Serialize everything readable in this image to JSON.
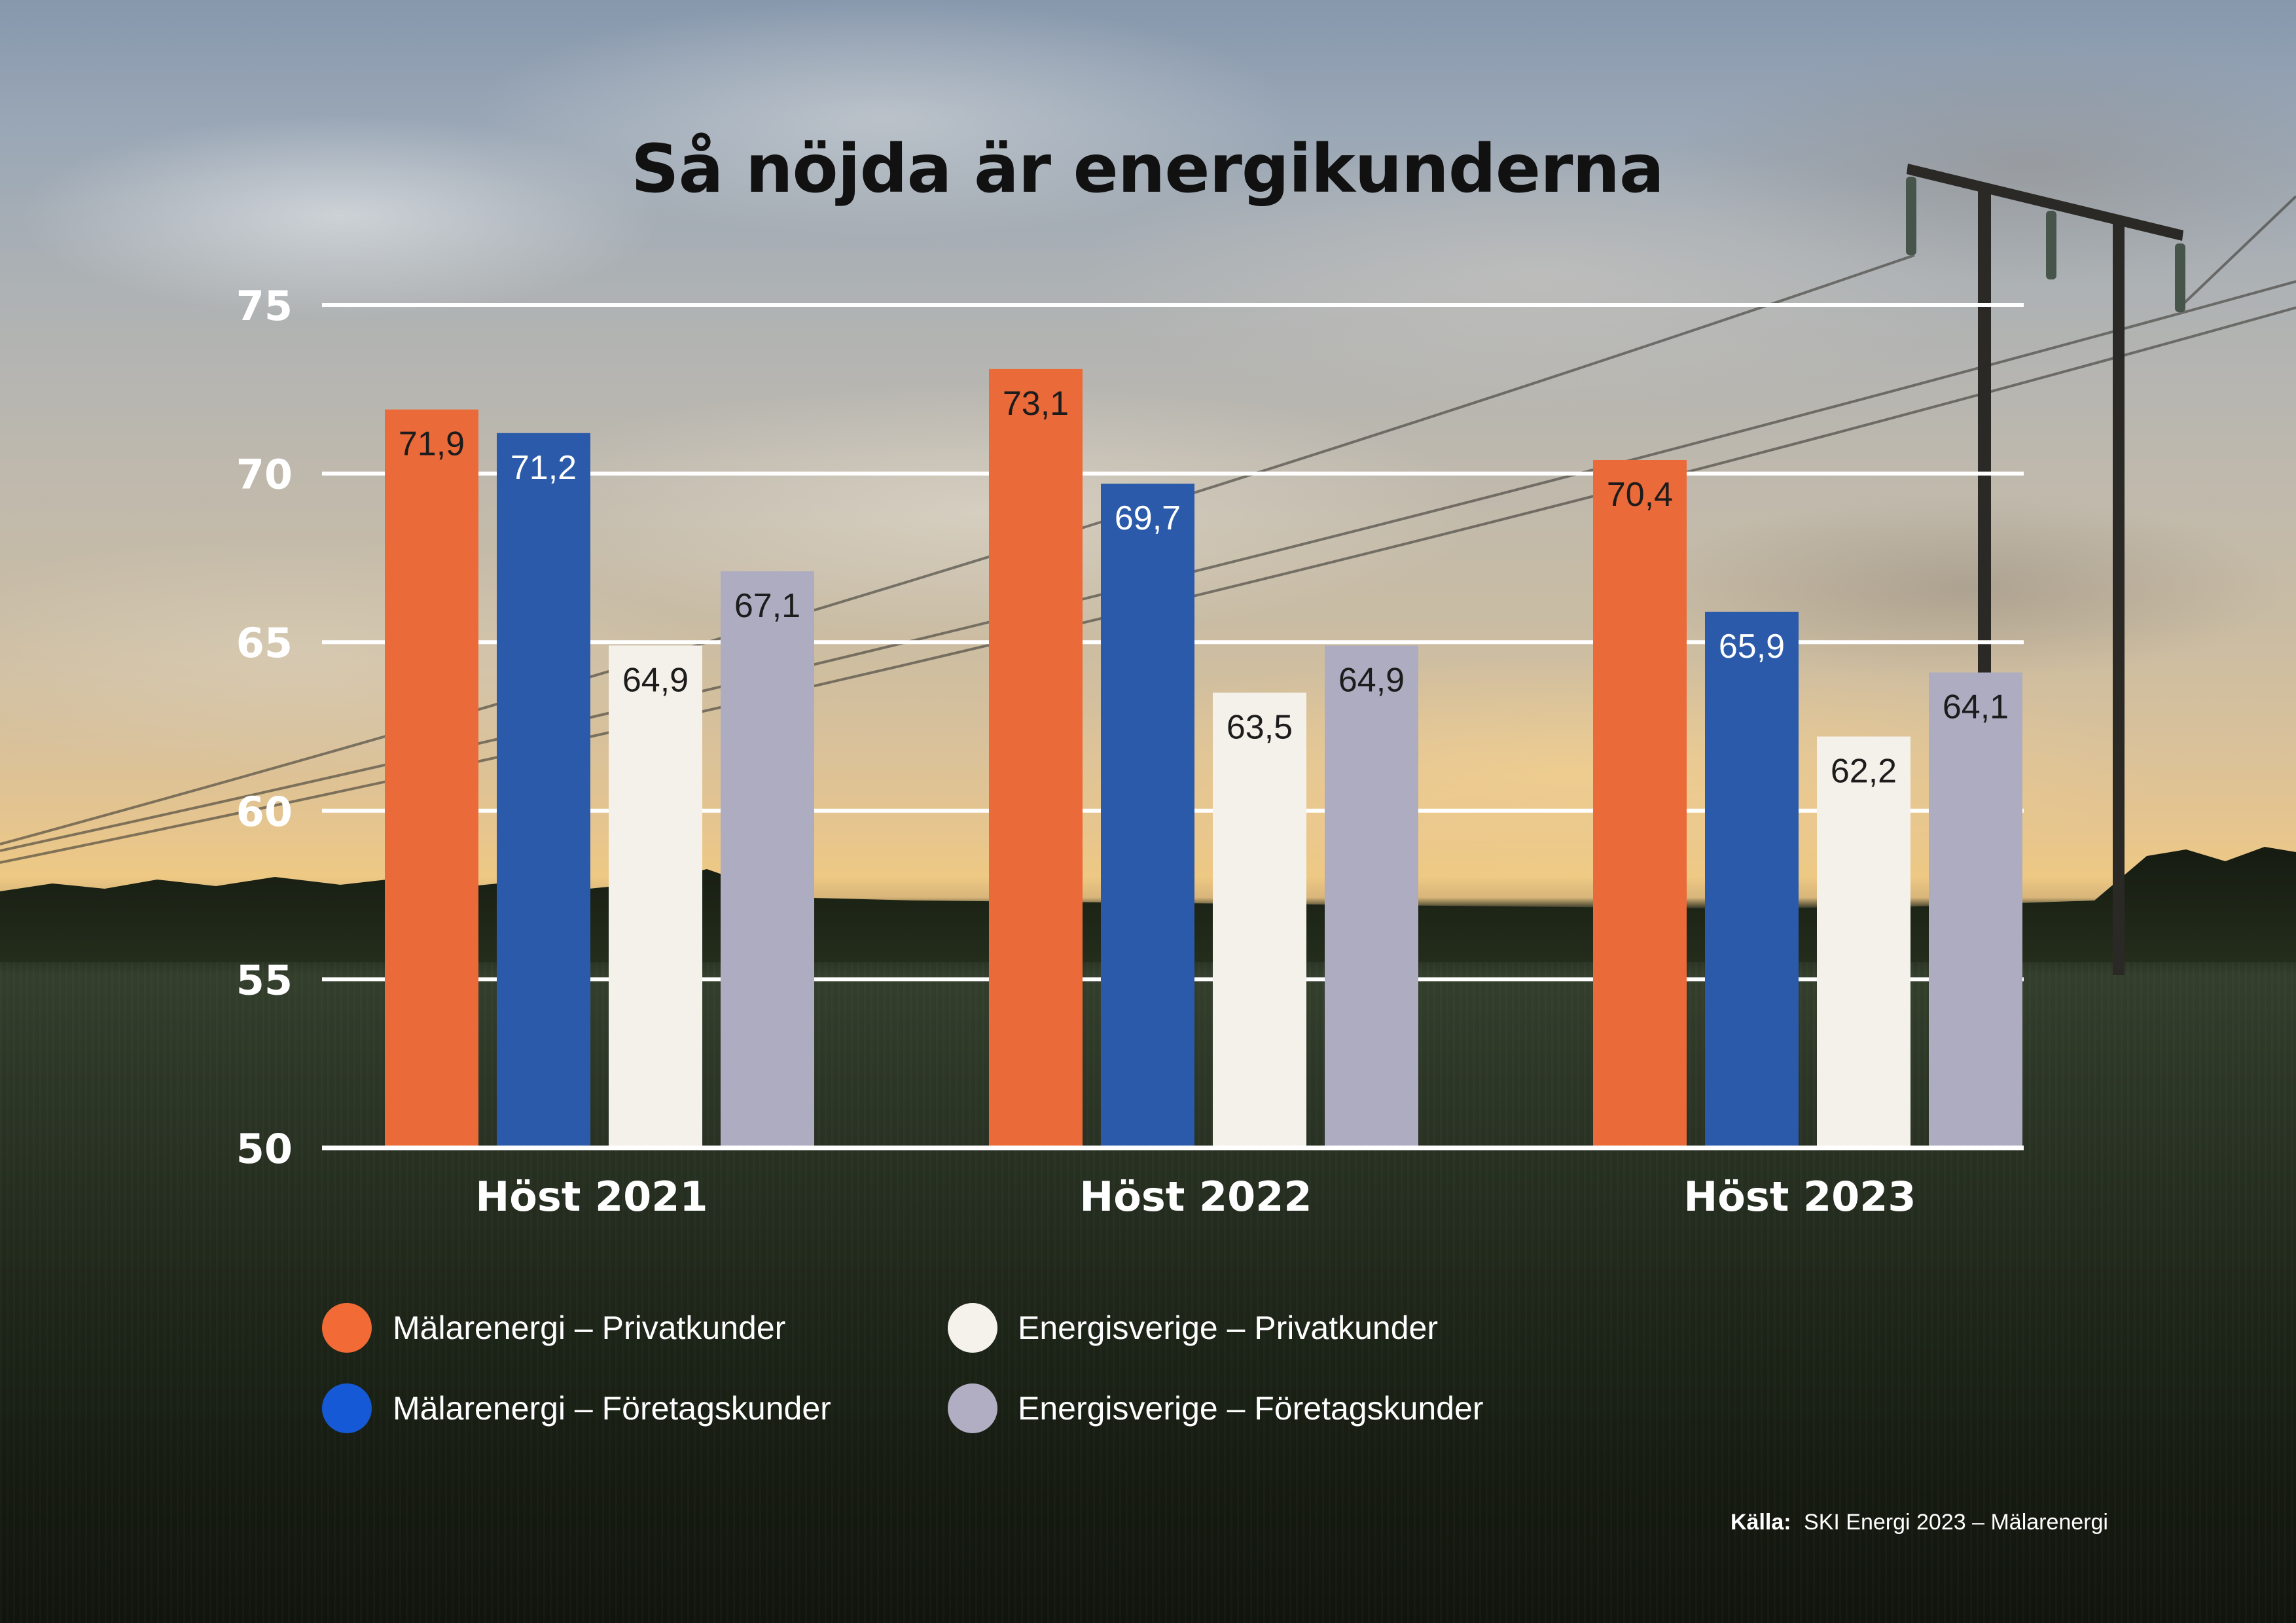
{
  "chart_data": {
    "type": "bar",
    "title": "Så nöjda är energikunderna",
    "xlabel": "",
    "ylabel": "",
    "grid": true,
    "ylim": [
      50,
      75
    ],
    "yticks": [
      50,
      55,
      60,
      65,
      70,
      75
    ],
    "categories": [
      "Höst 2021",
      "Höst 2022",
      "Höst 2023"
    ],
    "series": [
      {
        "name": "Mälarenergi – Privatkunder",
        "values": [
          71.9,
          73.1,
          70.4
        ],
        "labels": [
          "71,9",
          "73,1",
          "70,4"
        ],
        "color": "#EB6A39",
        "legend_color": "#F26B36",
        "label_color": "#1c1c1c"
      },
      {
        "name": "Mälarenergi – Företagskunder",
        "values": [
          71.2,
          69.7,
          65.9
        ],
        "labels": [
          "71,2",
          "69,7",
          "65,9"
        ],
        "color": "#2A5AA9",
        "legend_color": "#1659D6",
        "label_color": "#ffffff"
      },
      {
        "name": "Energisverige – Privatkunder",
        "values": [
          64.9,
          63.5,
          62.2
        ],
        "labels": [
          "64,9",
          "63,5",
          "62,2"
        ],
        "color": "#F4F1EA",
        "legend_color": "#F5F2EC",
        "label_color": "#1c1c1c"
      },
      {
        "name": "Energisverige – Företagskunder",
        "values": [
          67.1,
          64.9,
          64.1
        ],
        "labels": [
          "67,1",
          "64,9",
          "64,1"
        ],
        "color": "#AEACC1",
        "legend_color": "#B1AEC3",
        "label_color": "#1c1c1c"
      }
    ]
  },
  "source": {
    "label": "Källa:",
    "text": "SKI Energi 2023 – Mälarenergi"
  }
}
